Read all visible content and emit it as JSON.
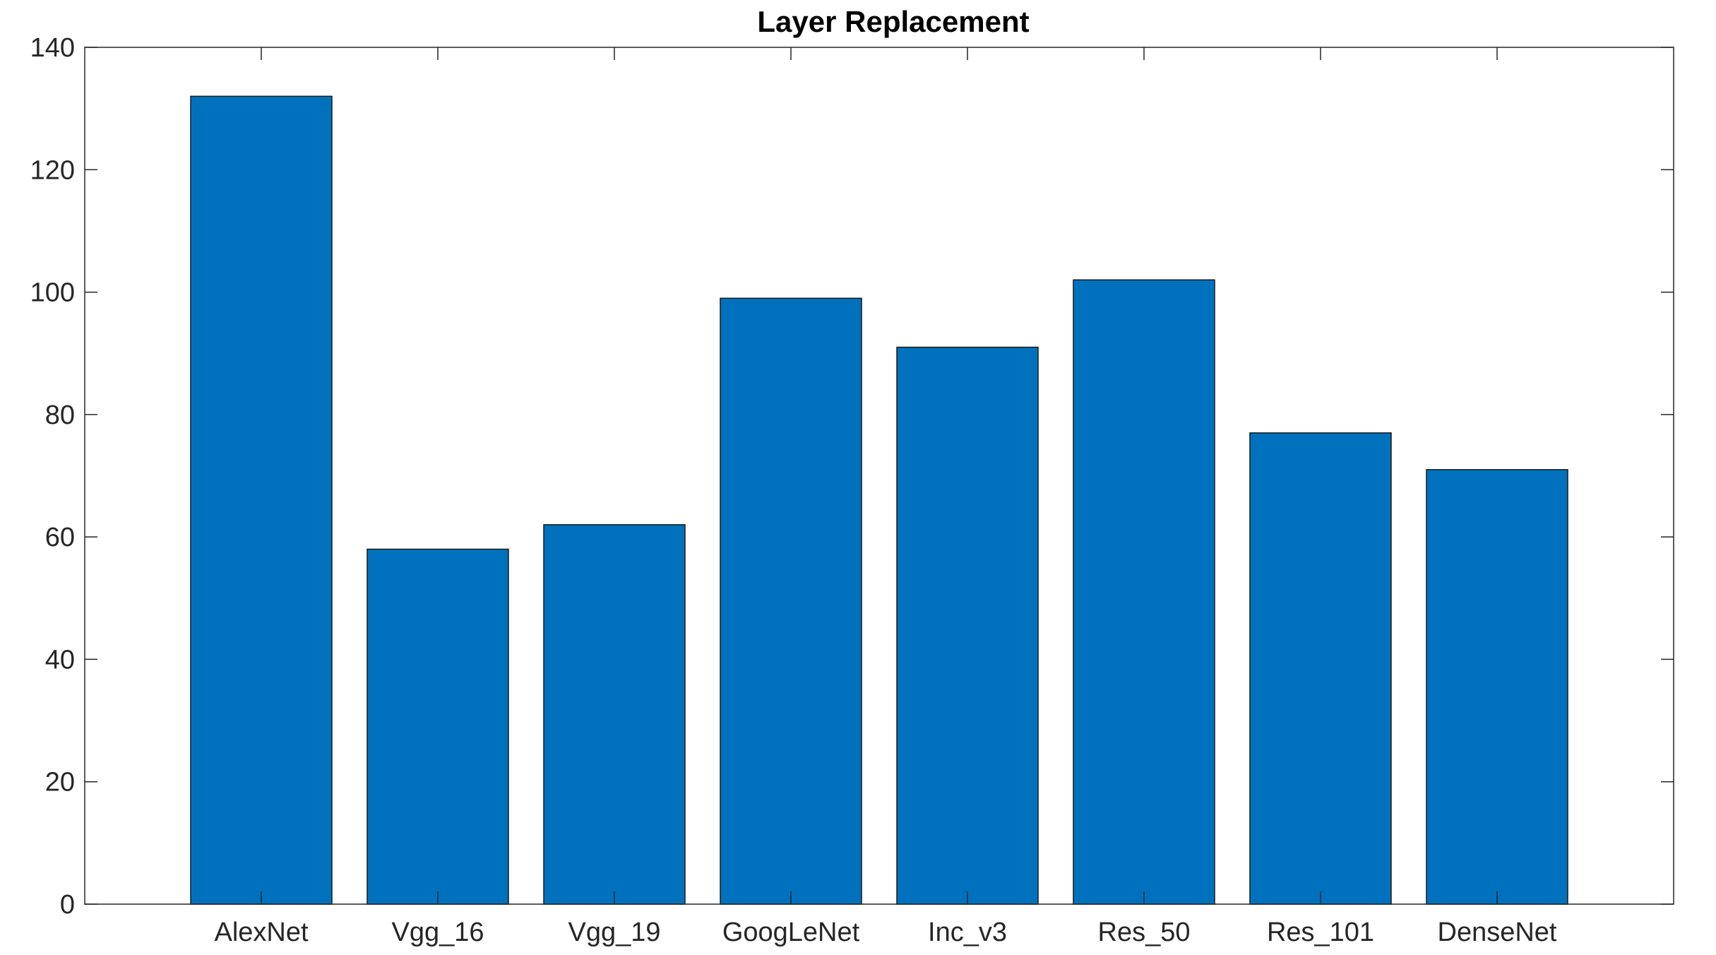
{
  "chart_data": {
    "type": "bar",
    "title": "Layer Replacement",
    "xlabel": "",
    "ylabel": "",
    "categories": [
      "AlexNet",
      "Vgg_16",
      "Vgg_19",
      "GoogLeNet",
      "Inc_v3",
      "Res_50",
      "Res_101",
      "DenseNet"
    ],
    "values": [
      132,
      58,
      62,
      99,
      91,
      102,
      77,
      71
    ],
    "ylim": [
      0,
      140
    ],
    "yticks": [
      "0",
      "20",
      "40",
      "60",
      "80",
      "100",
      "120",
      "140"
    ],
    "xlim": [
      -0.5,
      8.5
    ],
    "grid": false,
    "legend": "none",
    "bar_color": "#0072BD",
    "bar_edge_color": "#1a1a1a",
    "axis_color": "#262626"
  }
}
